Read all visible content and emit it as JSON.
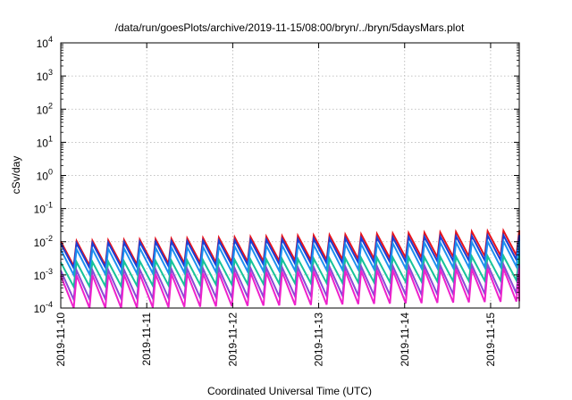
{
  "chart_data": {
    "type": "line",
    "title": "/data/run/goesPlots/archive/2019-11-15/08:00/bryn/../bryn/5daysMars.plot",
    "xlabel": "Coordinated Universal Time (UTC)",
    "ylabel": "cSv/day",
    "y_scale": "log",
    "ylim": [
      0.0001,
      10000
    ],
    "y_ticks": [
      {
        "base": "10",
        "exp": "-4",
        "value": 0.0001
      },
      {
        "base": "10",
        "exp": "-3",
        "value": 0.001
      },
      {
        "base": "10",
        "exp": "-2",
        "value": 0.01
      },
      {
        "base": "10",
        "exp": "-1",
        "value": 0.1
      },
      {
        "base": "10",
        "exp": "0",
        "value": 1
      },
      {
        "base": "10",
        "exp": "1",
        "value": 10
      },
      {
        "base": "10",
        "exp": "2",
        "value": 100
      },
      {
        "base": "10",
        "exp": "3",
        "value": 1000
      },
      {
        "base": "10",
        "exp": "4",
        "value": 10000
      }
    ],
    "xlim": [
      "2019-11-10T00:00",
      "2019-11-15T08:00"
    ],
    "x_ticks": [
      "2019-11-10",
      "2019-11-11",
      "2019-11-12",
      "2019-11-13",
      "2019-11-14",
      "2019-11-15"
    ],
    "grid": true,
    "legend": "none",
    "sawtooth_cycles_per_day": 5.5,
    "series": [
      {
        "color": "#e8131c",
        "peak_start": 0.0102,
        "peak_end": 0.022,
        "ratio": 5.5
      },
      {
        "color": "#1a3fd6",
        "peak_start": 0.0088,
        "peak_end": 0.016,
        "ratio": 5.5
      },
      {
        "color": "#1e90f0",
        "peak_start": 0.0058,
        "peak_end": 0.0105,
        "ratio": 5.8
      },
      {
        "color": "#17c39a",
        "peak_start": 0.0024,
        "peak_end": 0.0038,
        "ratio": 5.5
      },
      {
        "color": "#8a49d6",
        "peak_start": 0.00135,
        "peak_end": 0.0021,
        "ratio": 7.5
      },
      {
        "color": "#ee22cc",
        "peak_start": 0.00095,
        "peak_end": 0.0016,
        "ratio": 10.0
      }
    ]
  }
}
